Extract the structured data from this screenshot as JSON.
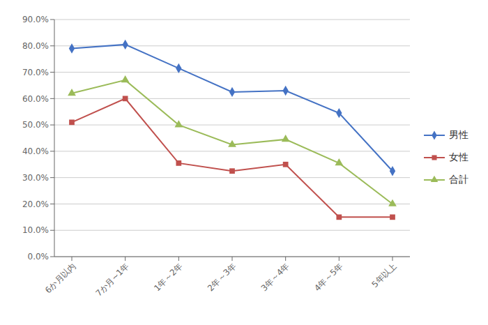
{
  "chart_data": {
    "type": "line",
    "categories": [
      "6か月以内",
      "7か月~1年",
      "1年～2年",
      "2年～3年",
      "3年～4年",
      "4年～5年",
      "5年以上"
    ],
    "series": [
      {
        "name": "男性",
        "color": "#4472C4",
        "marker": "diamond",
        "values": [
          0.79,
          0.805,
          0.715,
          0.625,
          0.63,
          0.545,
          0.325
        ]
      },
      {
        "name": "女性",
        "color": "#C0504D",
        "marker": "square",
        "values": [
          0.51,
          0.6,
          0.355,
          0.325,
          0.35,
          0.15,
          0.15
        ]
      },
      {
        "name": "合計",
        "color": "#9BBB59",
        "marker": "triangle",
        "values": [
          0.62,
          0.67,
          0.5,
          0.425,
          0.445,
          0.355,
          0.2
        ]
      }
    ],
    "ylim": [
      0.0,
      0.9
    ],
    "yticks": [
      {
        "value": 0.0,
        "label": "0.0%"
      },
      {
        "value": 0.1,
        "label": "10.0%"
      },
      {
        "value": 0.2,
        "label": "20.0%"
      },
      {
        "value": 0.3,
        "label": "30.0%"
      },
      {
        "value": 0.4,
        "label": "40.0%"
      },
      {
        "value": 0.5,
        "label": "50.0%"
      },
      {
        "value": 0.6,
        "label": "60.0%"
      },
      {
        "value": 0.7,
        "label": "70.0%"
      },
      {
        "value": 0.8,
        "label": "80.0%"
      },
      {
        "value": 0.9,
        "label": "90.0%"
      }
    ],
    "grid": true,
    "legend": "right"
  }
}
